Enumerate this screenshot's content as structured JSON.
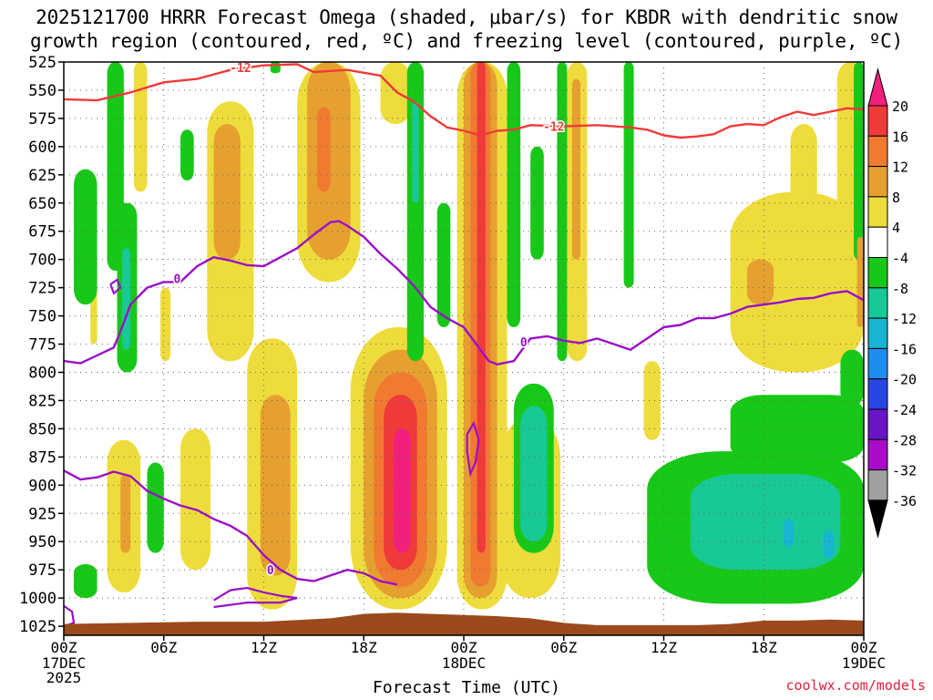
{
  "title_line1": "2025121700 HRRR Forecast Omega (shaded, μbar/s) for KBDR with dendritic snow",
  "title_line2": "growth region (contoured, red, ºC) and freezing level (contoured, purple, ºC)",
  "credit": "coolwx.com/models",
  "colors": {
    "dendritic_contour": "#f03a3a",
    "freezing_contour": "#9a10c8",
    "terrain": "#9a4a1c",
    "grid": "#666666"
  },
  "chart_data": {
    "type": "heatmap",
    "xlabel": "Forecast Time (UTC)",
    "x_ticks": [
      {
        "hour": 0,
        "label": "00Z",
        "sub": [
          "17DEC",
          "2025"
        ]
      },
      {
        "hour": 6,
        "label": "06Z",
        "sub": []
      },
      {
        "hour": 12,
        "label": "12Z",
        "sub": []
      },
      {
        "hour": 18,
        "label": "18Z",
        "sub": []
      },
      {
        "hour": 24,
        "label": "00Z",
        "sub": [
          "18DEC"
        ]
      },
      {
        "hour": 30,
        "label": "06Z",
        "sub": []
      },
      {
        "hour": 36,
        "label": "12Z",
        "sub": []
      },
      {
        "hour": 42,
        "label": "18Z",
        "sub": []
      },
      {
        "hour": 48,
        "label": "00Z",
        "sub": [
          "19DEC"
        ]
      }
    ],
    "xlim": [
      0,
      48
    ],
    "y_ticks": [
      525,
      550,
      575,
      600,
      625,
      650,
      675,
      700,
      725,
      750,
      775,
      800,
      825,
      850,
      875,
      900,
      925,
      950,
      975,
      1000,
      1025
    ],
    "ylim": [
      525,
      1033
    ],
    "colorbar": {
      "labels": [
        "20",
        "16",
        "12",
        "8",
        "4",
        "-4",
        "-8",
        "-12",
        "-16",
        "-20",
        "-24",
        "-28",
        "-32",
        "-36"
      ],
      "levels": [
        {
          "lo": 20,
          "hi": 24,
          "color": "#f0207c"
        },
        {
          "lo": 16,
          "hi": 20,
          "color": "#f03a3a"
        },
        {
          "lo": 12,
          "hi": 16,
          "color": "#f07a30"
        },
        {
          "lo": 8,
          "hi": 12,
          "color": "#e6a030"
        },
        {
          "lo": 4,
          "hi": 8,
          "color": "#eedc3c"
        },
        {
          "lo": -4,
          "hi": 4,
          "color": "#ffffff"
        },
        {
          "lo": -8,
          "hi": -4,
          "color": "#18c818"
        },
        {
          "lo": -12,
          "hi": -8,
          "color": "#18c896"
        },
        {
          "lo": -16,
          "hi": -12,
          "color": "#18b4d2"
        },
        {
          "lo": -20,
          "hi": -16,
          "color": "#1e8cf0"
        },
        {
          "lo": -24,
          "hi": -20,
          "color": "#2846e6"
        },
        {
          "lo": -28,
          "hi": -24,
          "color": "#6a14c8"
        },
        {
          "lo": -32,
          "hi": -28,
          "color": "#a80cc8"
        },
        {
          "lo": -36,
          "hi": -32,
          "color": "#a0a0a0"
        },
        {
          "lo": -40,
          "hi": -36,
          "color": "#000000"
        }
      ]
    },
    "omega_features": [
      {
        "kind": "strip",
        "level": "4",
        "t0": 1.6,
        "t1": 2.0,
        "p0": 700,
        "p1": 775
      },
      {
        "kind": "strip",
        "level": "4",
        "t0": 4.2,
        "t1": 5.0,
        "p0": 525,
        "p1": 640
      },
      {
        "kind": "strip",
        "level": "4",
        "t0": 5.8,
        "t1": 6.4,
        "p0": 725,
        "p1": 790
      },
      {
        "kind": "strip",
        "level": "4",
        "t0": 8.6,
        "t1": 11.4,
        "p0": 560,
        "p1": 790
      },
      {
        "kind": "strip",
        "level": "8",
        "t0": 9.0,
        "t1": 10.6,
        "p0": 580,
        "p1": 700
      },
      {
        "kind": "strip",
        "level": "4",
        "t0": 14.0,
        "t1": 17.8,
        "p0": 525,
        "p1": 720
      },
      {
        "kind": "strip",
        "level": "8",
        "t0": 14.6,
        "t1": 17.2,
        "p0": 525,
        "p1": 700
      },
      {
        "kind": "strip",
        "level": "12",
        "t0": 15.2,
        "t1": 16.0,
        "p0": 565,
        "p1": 640
      },
      {
        "kind": "strip",
        "level": "4",
        "t0": 19.0,
        "t1": 20.8,
        "p0": 525,
        "p1": 580
      },
      {
        "kind": "strip",
        "level": "4",
        "t0": 2.6,
        "t1": 4.6,
        "p0": 860,
        "p1": 995
      },
      {
        "kind": "strip",
        "level": "8",
        "t0": 3.4,
        "t1": 4.0,
        "p0": 890,
        "p1": 960
      },
      {
        "kind": "strip",
        "level": "4",
        "t0": 7.0,
        "t1": 8.8,
        "p0": 850,
        "p1": 975
      },
      {
        "kind": "strip",
        "level": "4",
        "t0": 11.0,
        "t1": 14.0,
        "p0": 770,
        "p1": 1010
      },
      {
        "kind": "strip",
        "level": "8",
        "t0": 11.8,
        "t1": 13.6,
        "p0": 820,
        "p1": 980
      },
      {
        "kind": "strip",
        "level": "4",
        "t0": 17.2,
        "t1": 23.0,
        "p0": 760,
        "p1": 1010
      },
      {
        "kind": "strip",
        "level": "8",
        "t0": 18.0,
        "t1": 22.4,
        "p0": 780,
        "p1": 1000
      },
      {
        "kind": "strip",
        "level": "12",
        "t0": 18.6,
        "t1": 21.8,
        "p0": 800,
        "p1": 990
      },
      {
        "kind": "strip",
        "level": "16",
        "t0": 19.2,
        "t1": 21.2,
        "p0": 820,
        "p1": 975
      },
      {
        "kind": "strip",
        "level": "20",
        "t0": 19.8,
        "t1": 20.8,
        "p0": 850,
        "p1": 960
      },
      {
        "kind": "strip",
        "level": "4",
        "t0": 23.6,
        "t1": 26.6,
        "p0": 525,
        "p1": 1010
      },
      {
        "kind": "strip",
        "level": "8",
        "t0": 24.0,
        "t1": 26.0,
        "p0": 525,
        "p1": 1000
      },
      {
        "kind": "strip",
        "level": "12",
        "t0": 24.4,
        "t1": 25.6,
        "p0": 525,
        "p1": 990
      },
      {
        "kind": "strip",
        "level": "16",
        "t0": 24.8,
        "t1": 25.3,
        "p0": 525,
        "p1": 960
      },
      {
        "kind": "strip",
        "level": "4",
        "t0": 26.2,
        "t1": 29.8,
        "p0": 840,
        "p1": 1000
      },
      {
        "kind": "strip",
        "level": "4",
        "t0": 30.2,
        "t1": 31.4,
        "p0": 525,
        "p1": 790
      },
      {
        "kind": "strip",
        "level": "8",
        "t0": 30.5,
        "t1": 31.0,
        "p0": 540,
        "p1": 700
      },
      {
        "kind": "strip",
        "level": "4",
        "t0": 34.8,
        "t1": 35.8,
        "p0": 790,
        "p1": 860
      },
      {
        "kind": "strip",
        "level": "4",
        "t0": 40.0,
        "t1": 48.0,
        "p0": 640,
        "p1": 800
      },
      {
        "kind": "strip",
        "level": "8",
        "t0": 41.0,
        "t1": 42.6,
        "p0": 700,
        "p1": 740
      },
      {
        "kind": "strip",
        "level": "4",
        "t0": 43.6,
        "t1": 45.2,
        "p0": 580,
        "p1": 660
      },
      {
        "kind": "strip",
        "level": "4",
        "t0": 46.4,
        "t1": 48.0,
        "p0": 525,
        "p1": 680
      },
      {
        "kind": "strip",
        "level": "-4",
        "t0": 2.6,
        "t1": 3.6,
        "p0": 525,
        "p1": 710
      },
      {
        "kind": "strip",
        "level": "-4",
        "t0": 0.6,
        "t1": 2.0,
        "p0": 620,
        "p1": 740
      },
      {
        "kind": "strip",
        "level": "-4",
        "t0": 3.2,
        "t1": 4.4,
        "p0": 650,
        "p1": 800
      },
      {
        "kind": "strip",
        "level": "-8",
        "t0": 3.5,
        "t1": 4.0,
        "p0": 690,
        "p1": 780
      },
      {
        "kind": "strip",
        "level": "-4",
        "t0": 7.0,
        "t1": 7.8,
        "p0": 585,
        "p1": 630
      },
      {
        "kind": "strip",
        "level": "-4",
        "t0": 0.6,
        "t1": 2.0,
        "p0": 970,
        "p1": 1000
      },
      {
        "kind": "strip",
        "level": "-4",
        "t0": 5.0,
        "t1": 6.0,
        "p0": 880,
        "p1": 960
      },
      {
        "kind": "strip",
        "level": "-4",
        "t0": 12.4,
        "t1": 13.0,
        "p0": 525,
        "p1": 535
      },
      {
        "kind": "strip",
        "level": "-4",
        "t0": 20.6,
        "t1": 21.6,
        "p0": 525,
        "p1": 790
      },
      {
        "kind": "strip",
        "level": "-8",
        "t0": 20.9,
        "t1": 21.3,
        "p0": 560,
        "p1": 650
      },
      {
        "kind": "strip",
        "level": "-4",
        "t0": 22.4,
        "t1": 23.2,
        "p0": 650,
        "p1": 760
      },
      {
        "kind": "strip",
        "level": "-4",
        "t0": 26.6,
        "t1": 27.4,
        "p0": 525,
        "p1": 760
      },
      {
        "kind": "strip",
        "level": "-4",
        "t0": 27.0,
        "t1": 29.4,
        "p0": 810,
        "p1": 960
      },
      {
        "kind": "strip",
        "level": "-8",
        "t0": 27.4,
        "t1": 29.0,
        "p0": 830,
        "p1": 950
      },
      {
        "kind": "strip",
        "level": "-4",
        "t0": 28.0,
        "t1": 28.8,
        "p0": 600,
        "p1": 700
      },
      {
        "kind": "strip",
        "level": "-4",
        "t0": 29.6,
        "t1": 30.2,
        "p0": 525,
        "p1": 790
      },
      {
        "kind": "strip",
        "level": "-4",
        "t0": 33.6,
        "t1": 34.2,
        "p0": 525,
        "p1": 725
      },
      {
        "kind": "strip",
        "level": "-4",
        "t0": 35.0,
        "t1": 48.0,
        "p0": 870,
        "p1": 1005
      },
      {
        "kind": "strip",
        "level": "-4",
        "t0": 40.0,
        "t1": 48.0,
        "p0": 820,
        "p1": 880
      },
      {
        "kind": "strip",
        "level": "-4",
        "t0": 46.6,
        "t1": 48.0,
        "p0": 780,
        "p1": 830
      },
      {
        "kind": "strip",
        "level": "-8",
        "t0": 37.6,
        "t1": 46.6,
        "p0": 890,
        "p1": 975
      },
      {
        "kind": "strip",
        "level": "-12",
        "t0": 43.2,
        "t1": 43.8,
        "p0": 930,
        "p1": 955
      },
      {
        "kind": "strip",
        "level": "-12",
        "t0": 45.6,
        "t1": 46.2,
        "p0": 940,
        "p1": 965
      },
      {
        "kind": "strip",
        "level": "-4",
        "t0": 47.4,
        "t1": 48.0,
        "p0": 525,
        "p1": 700
      },
      {
        "kind": "strip",
        "level": "8",
        "t0": 47.6,
        "t1": 48.0,
        "p0": 680,
        "p1": 760
      }
    ],
    "dendritic_m12": {
      "label": "-12",
      "points": [
        [
          0,
          558
        ],
        [
          2,
          559
        ],
        [
          4,
          552
        ],
        [
          6,
          543
        ],
        [
          8,
          540
        ],
        [
          10,
          532
        ],
        [
          12,
          528
        ],
        [
          14,
          527
        ],
        [
          15,
          534
        ],
        [
          17,
          532
        ],
        [
          19,
          537
        ],
        [
          20,
          552
        ],
        [
          21,
          560
        ],
        [
          22,
          573
        ],
        [
          23,
          583
        ],
        [
          24,
          586
        ],
        [
          25,
          590
        ],
        [
          26,
          586
        ],
        [
          27,
          585
        ],
        [
          28,
          581
        ],
        [
          30,
          582
        ],
        [
          32,
          581
        ],
        [
          34,
          583
        ],
        [
          35,
          585
        ],
        [
          36,
          590
        ],
        [
          37,
          592
        ],
        [
          38,
          591
        ],
        [
          39,
          589
        ],
        [
          40,
          582
        ],
        [
          41,
          580
        ],
        [
          42,
          581
        ],
        [
          43,
          574
        ],
        [
          44,
          569
        ],
        [
          45,
          572
        ],
        [
          46,
          569
        ],
        [
          47,
          566
        ],
        [
          48,
          567
        ]
      ],
      "label_positions": [
        [
          10.6,
          530
        ],
        [
          29.4,
          582
        ]
      ]
    },
    "freezing_upper": {
      "label": "0",
      "points": [
        [
          0,
          790
        ],
        [
          1,
          792
        ],
        [
          2,
          785
        ],
        [
          3,
          778
        ],
        [
          3.5,
          760
        ],
        [
          4,
          740
        ],
        [
          5,
          725
        ],
        [
          6,
          720
        ],
        [
          7,
          720
        ],
        [
          8,
          706
        ],
        [
          9,
          698
        ],
        [
          10,
          701
        ],
        [
          11,
          705
        ],
        [
          12,
          706
        ],
        [
          13,
          698
        ],
        [
          14,
          690
        ],
        [
          15,
          678
        ],
        [
          16,
          667
        ],
        [
          16.5,
          666
        ],
        [
          17,
          670
        ],
        [
          18,
          680
        ],
        [
          19,
          695
        ],
        [
          20,
          708
        ],
        [
          21,
          723
        ],
        [
          22,
          742
        ],
        [
          23,
          752
        ],
        [
          24,
          760
        ],
        [
          25,
          780
        ],
        [
          25.5,
          790
        ],
        [
          26,
          793
        ],
        [
          27,
          790
        ],
        [
          28,
          770
        ],
        [
          29,
          768
        ],
        [
          30,
          772
        ],
        [
          31,
          774
        ],
        [
          32,
          770
        ],
        [
          33,
          775
        ],
        [
          34,
          780
        ],
        [
          35,
          770
        ],
        [
          36,
          760
        ],
        [
          37,
          758
        ],
        [
          38,
          752
        ],
        [
          39,
          752
        ],
        [
          40,
          748
        ],
        [
          41,
          742
        ],
        [
          42,
          740
        ],
        [
          43,
          738
        ],
        [
          44,
          735
        ],
        [
          45,
          734
        ],
        [
          46,
          730
        ],
        [
          47,
          728
        ],
        [
          48,
          736
        ]
      ],
      "label_positions": [
        [
          6.8,
          717
        ],
        [
          27.6,
          773
        ]
      ]
    },
    "freezing_lower": {
      "label": "0",
      "points": [
        [
          0,
          887
        ],
        [
          1,
          895
        ],
        [
          2,
          893
        ],
        [
          3,
          888
        ],
        [
          4,
          892
        ],
        [
          5,
          905
        ],
        [
          6,
          912
        ],
        [
          7,
          918
        ],
        [
          8,
          922
        ],
        [
          9,
          930
        ],
        [
          10,
          936
        ],
        [
          11,
          945
        ],
        [
          12,
          962
        ],
        [
          13,
          975
        ],
        [
          14,
          983
        ],
        [
          15,
          985
        ],
        [
          16,
          980
        ],
        [
          17,
          975
        ],
        [
          18,
          978
        ],
        [
          19,
          985
        ],
        [
          20,
          988
        ]
      ],
      "label_positions": [
        [
          12.4,
          975
        ]
      ]
    },
    "freezing_small": [
      [
        [
          2.8,
          722
        ],
        [
          3.2,
          718
        ],
        [
          3.4,
          725
        ],
        [
          3.0,
          730
        ],
        [
          2.8,
          722
        ]
      ],
      [
        [
          24.2,
          855
        ],
        [
          24.6,
          845
        ],
        [
          24.9,
          860
        ],
        [
          24.7,
          880
        ],
        [
          24.4,
          890
        ],
        [
          24.2,
          870
        ],
        [
          24.2,
          855
        ]
      ],
      [
        [
          9.0,
          1002
        ],
        [
          10.0,
          993
        ],
        [
          11.0,
          991
        ],
        [
          12.0,
          995
        ],
        [
          13.0,
          998
        ],
        [
          14.0,
          1000
        ],
        [
          13.0,
          1004
        ],
        [
          11.0,
          1004
        ],
        [
          10.0,
          1006
        ],
        [
          9.0,
          1008
        ]
      ],
      [
        [
          0,
          1007
        ],
        [
          0.5,
          1012
        ],
        [
          0.6,
          1022
        ],
        [
          0,
          1025
        ]
      ]
    ],
    "terrain_top": [
      [
        0,
        1023
      ],
      [
        4,
        1022
      ],
      [
        8,
        1021
      ],
      [
        12,
        1021
      ],
      [
        16,
        1018
      ],
      [
        18,
        1014
      ],
      [
        20,
        1013
      ],
      [
        22,
        1014
      ],
      [
        24,
        1015
      ],
      [
        26,
        1016
      ],
      [
        28,
        1018
      ],
      [
        30,
        1022
      ],
      [
        32,
        1024
      ],
      [
        34,
        1024
      ],
      [
        36,
        1024
      ],
      [
        38,
        1024
      ],
      [
        40,
        1023
      ],
      [
        42,
        1020
      ],
      [
        44,
        1020
      ],
      [
        46,
        1019
      ],
      [
        48,
        1020
      ]
    ]
  }
}
